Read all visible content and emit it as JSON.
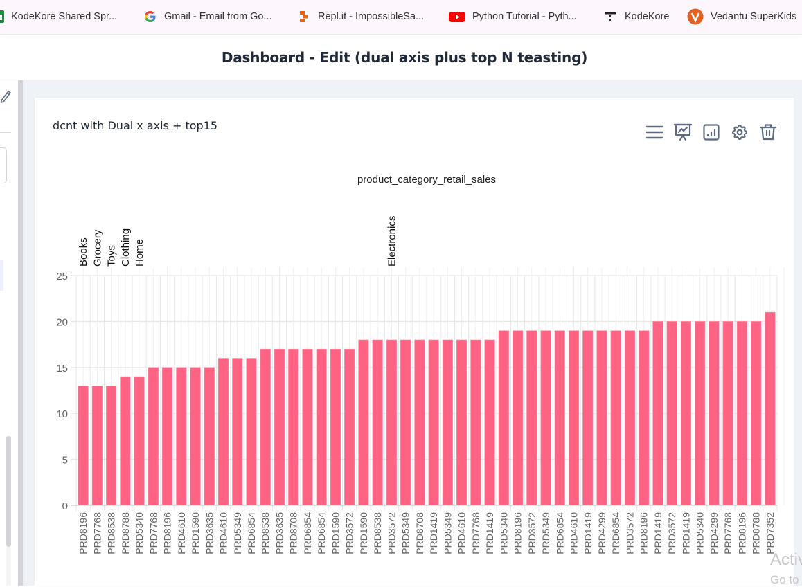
{
  "bookmarks": [
    {
      "label": "KodeKore Shared Spr...",
      "icon": "google-sheets-icon"
    },
    {
      "label": "Gmail - Email from Go...",
      "icon": "google-icon"
    },
    {
      "label": "Repl.it - ImpossibleSa...",
      "icon": "replit-icon"
    },
    {
      "label": "Python Tutorial - Pyth...",
      "icon": "youtube-icon"
    },
    {
      "label": "KodeKore",
      "icon": "kodekore-icon"
    },
    {
      "label": "Vedantu SuperKids",
      "icon": "vedantu-icon"
    }
  ],
  "header": {
    "title": "Dashboard - Edit (dual axis plus top N teasting)"
  },
  "card": {
    "title": "dcnt with Dual x axis + top15",
    "tools": [
      {
        "name": "menu",
        "icon": "hamburger-menu-icon"
      },
      {
        "name": "presentation",
        "icon": "presentation-chart-icon"
      },
      {
        "name": "chart-type",
        "icon": "bar-chart-icon"
      },
      {
        "name": "settings",
        "icon": "gear-icon"
      },
      {
        "name": "delete",
        "icon": "trash-icon"
      }
    ]
  },
  "watermark": {
    "line1": "Activ",
    "line2": "Go to"
  },
  "colors": {
    "bar": "#ff6384",
    "grid": "#e8e8e8",
    "axis_text": "#666666"
  },
  "chart_data": {
    "type": "bar",
    "title": "product_category_retail_sales",
    "xlabel": "",
    "ylabel": "",
    "ylim": [
      0,
      25
    ],
    "yticks": [
      0,
      5,
      10,
      15,
      20,
      25
    ],
    "grid": true,
    "secondary_x_categories": [
      {
        "label": "Books",
        "index": 0
      },
      {
        "label": "Grocery",
        "index": 1
      },
      {
        "label": "Toys",
        "index": 2
      },
      {
        "label": "Clothing",
        "index": 3
      },
      {
        "label": "Home",
        "index": 4
      },
      {
        "label": "Electronics",
        "index": 22
      }
    ],
    "categories": [
      "PRD8196",
      "PRD7768",
      "PRD8538",
      "PRD8788",
      "PRD5340",
      "PRD7768",
      "PRD8196",
      "PRD4610",
      "PRD1590",
      "PRD3635",
      "PRD4610",
      "PRD5349",
      "PRD6854",
      "PRD8538",
      "PRD3635",
      "PRD8708",
      "PRD6854",
      "PRD6854",
      "PRD1590",
      "PRD3572",
      "PRD1590",
      "PRD8538",
      "PRD3572",
      "PRD5349",
      "PRD8708",
      "PRD1419",
      "PRD5349",
      "PRD4610",
      "PRD7768",
      "PRD1419",
      "PRD5340",
      "PRD8196",
      "PRD3572",
      "PRD5349",
      "PRD6854",
      "PRD4610",
      "PRD1419",
      "PRD4299",
      "PRD6854",
      "PRD3572",
      "PRD8196",
      "PRD1419",
      "PRD3572",
      "PRD1419",
      "PRD5340",
      "PRD4299",
      "PRD7768",
      "PRD8196",
      "PRD8788",
      "PRD7352"
    ],
    "values": [
      13,
      13,
      13,
      14,
      14,
      15,
      15,
      15,
      15,
      15,
      16,
      16,
      16,
      17,
      17,
      17,
      17,
      17,
      17,
      17,
      18,
      18,
      18,
      18,
      18,
      18,
      18,
      18,
      18,
      18,
      19,
      19,
      19,
      19,
      19,
      19,
      19,
      19,
      19,
      19,
      19,
      20,
      20,
      20,
      20,
      20,
      20,
      20,
      20,
      21
    ]
  }
}
